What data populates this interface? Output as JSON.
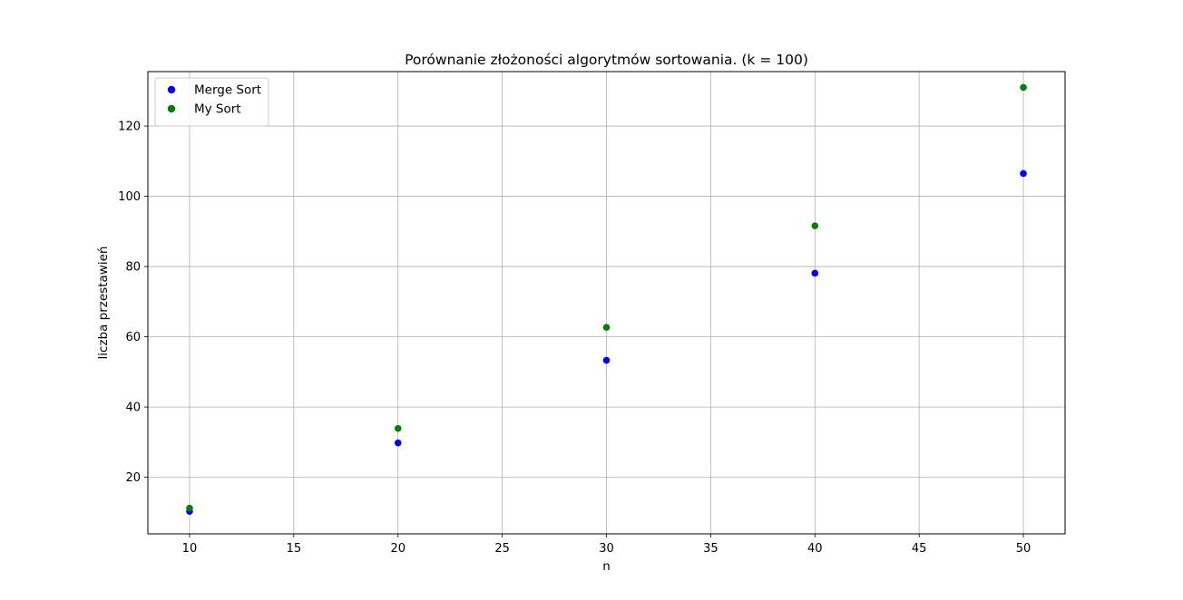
{
  "chart_data": {
    "type": "scatter",
    "title": "Porównanie złożoności algorytmów sortowania. (k = 100)",
    "xlabel": "n",
    "ylabel": "liczba przestawień",
    "xlim": [
      8,
      52
    ],
    "ylim": [
      3.9,
      135.5
    ],
    "xticks": [
      10,
      15,
      20,
      25,
      30,
      35,
      40,
      45,
      50
    ],
    "yticks": [
      20,
      40,
      60,
      80,
      100,
      120
    ],
    "grid": true,
    "legend_position": "top-left",
    "series": [
      {
        "name": "Merge Sort",
        "color": "#0000ff",
        "x": [
          10,
          20,
          30,
          40,
          50
        ],
        "y": [
          10.3,
          29.8,
          53.3,
          78.1,
          106.5
        ]
      },
      {
        "name": "My Sort",
        "color": "#008000",
        "x": [
          10,
          20,
          30,
          40,
          50
        ],
        "y": [
          11.2,
          33.9,
          62.7,
          91.6,
          131.0
        ]
      }
    ]
  }
}
